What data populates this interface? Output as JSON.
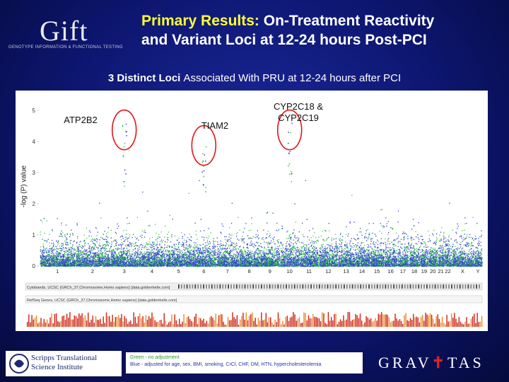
{
  "header": {
    "logo_text": "Gift",
    "logo_tagline": "GENOTYPE INFORMATION & FUNCTIONAL TESTING",
    "title_highlight": "Primary Results:",
    "title_rest": "On-Treatment Reactivity",
    "title_line2": "and Variant Loci at 12-24 hours Post-PCI"
  },
  "subtitle": {
    "bold": "3 Distinct Loci",
    "rest": "Associated With PRU at 12-24 hours after PCI"
  },
  "footnote": {
    "line1": "Green - no adjustment",
    "line2": "Blue - adjusted for age, sex, BMI, smoking, CrCl, CHF, DM, HTN, hypercholesterolemia"
  },
  "logos": {
    "scripps_line1": "Scripps Translational",
    "scripps_line2": "Science Institute",
    "gravitas_left": "GRAV",
    "gravitas_right": "TAS"
  },
  "chart_data": {
    "type": "scatter",
    "ylabel": "-log (P) value",
    "ylim": [
      0,
      5
    ],
    "yticks": [
      "0",
      "1",
      "2",
      "3",
      "4",
      "5"
    ],
    "chromosomes": [
      "1",
      "2",
      "3",
      "4",
      "5",
      "6",
      "7",
      "8",
      "9",
      "10",
      "11",
      "12",
      "13",
      "14",
      "15",
      "16",
      "17",
      "18",
      "19",
      "20",
      "21",
      "22",
      "X",
      "Y"
    ],
    "chromosome_labels": [
      "1",
      "2",
      "3",
      "4",
      "5",
      "6",
      "7",
      "8",
      "9",
      "10",
      "11",
      "12",
      "13",
      "14",
      "15",
      "16",
      "17",
      "18",
      "19",
      "20",
      "21",
      "22",
      "X",
      "Y"
    ],
    "series": [
      {
        "name": "Green - no adjustment",
        "color": "#33cc44"
      },
      {
        "name": "Blue - adjusted",
        "color": "#3344cc"
      }
    ],
    "annotations": [
      {
        "label": "ATP2B2",
        "chromosome": "3",
        "peak": 4.6
      },
      {
        "label": "TIAM2",
        "chromosome": "6",
        "peak": 4.1
      },
      {
        "label": "CYP2C18 & CYP2C19",
        "chromosome": "10",
        "peak": 4.6
      }
    ],
    "track_labels": [
      "Cytobands, UCSC (GRCh_37,Chromosome,Homo sapiens) [data.goldenhelix.com]",
      "RefSeq Genes, UCSC (GRCh_37,Chromosome,Homo sapiens) [data.goldenhelix.com]"
    ]
  }
}
